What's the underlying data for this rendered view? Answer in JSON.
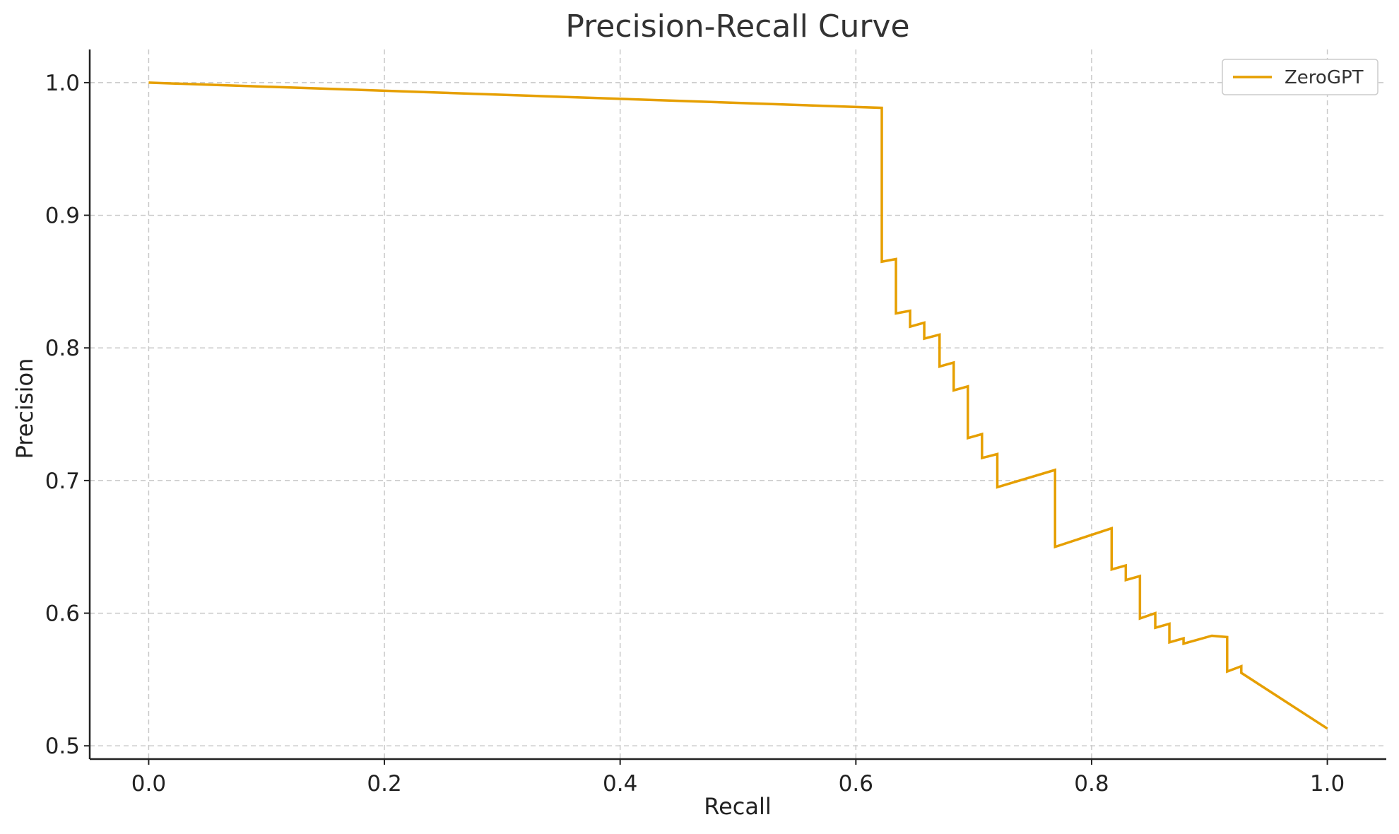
{
  "chart_data": {
    "type": "line",
    "title": "Precision-Recall Curve",
    "xlabel": "Recall",
    "ylabel": "Precision",
    "xlim": [
      -0.05,
      1.05
    ],
    "ylim": [
      0.49,
      1.025
    ],
    "xticks": [
      0.0,
      0.2,
      0.4,
      0.6,
      0.8,
      1.0
    ],
    "xtick_labels": [
      "0.0",
      "0.2",
      "0.4",
      "0.6",
      "0.8",
      "1.0"
    ],
    "yticks": [
      0.5,
      0.6,
      0.7,
      0.8,
      0.9,
      1.0
    ],
    "ytick_labels": [
      "0.5",
      "0.6",
      "0.7",
      "0.8",
      "0.9",
      "1.0"
    ],
    "grid": true,
    "legend_position": "top-right",
    "series": [
      {
        "name": "ZeroGPT",
        "color": "#E69F00",
        "points": [
          [
            0.0,
            1.0
          ],
          [
            0.622,
            0.981
          ],
          [
            0.622,
            0.865
          ],
          [
            0.634,
            0.867
          ],
          [
            0.634,
            0.826
          ],
          [
            0.646,
            0.828
          ],
          [
            0.646,
            0.816
          ],
          [
            0.658,
            0.819
          ],
          [
            0.658,
            0.807
          ],
          [
            0.671,
            0.81
          ],
          [
            0.671,
            0.786
          ],
          [
            0.683,
            0.789
          ],
          [
            0.683,
            0.768
          ],
          [
            0.695,
            0.771
          ],
          [
            0.695,
            0.732
          ],
          [
            0.707,
            0.735
          ],
          [
            0.707,
            0.717
          ],
          [
            0.72,
            0.72
          ],
          [
            0.72,
            0.695
          ],
          [
            0.769,
            0.708
          ],
          [
            0.769,
            0.65
          ],
          [
            0.817,
            0.664
          ],
          [
            0.817,
            0.633
          ],
          [
            0.829,
            0.636
          ],
          [
            0.829,
            0.625
          ],
          [
            0.841,
            0.628
          ],
          [
            0.841,
            0.596
          ],
          [
            0.854,
            0.6
          ],
          [
            0.854,
            0.589
          ],
          [
            0.866,
            0.592
          ],
          [
            0.866,
            0.578
          ],
          [
            0.878,
            0.581
          ],
          [
            0.878,
            0.577
          ],
          [
            0.902,
            0.583
          ],
          [
            0.915,
            0.582
          ],
          [
            0.915,
            0.556
          ],
          [
            0.927,
            0.56
          ],
          [
            0.927,
            0.555
          ],
          [
            1.0,
            0.513
          ]
        ]
      }
    ]
  }
}
